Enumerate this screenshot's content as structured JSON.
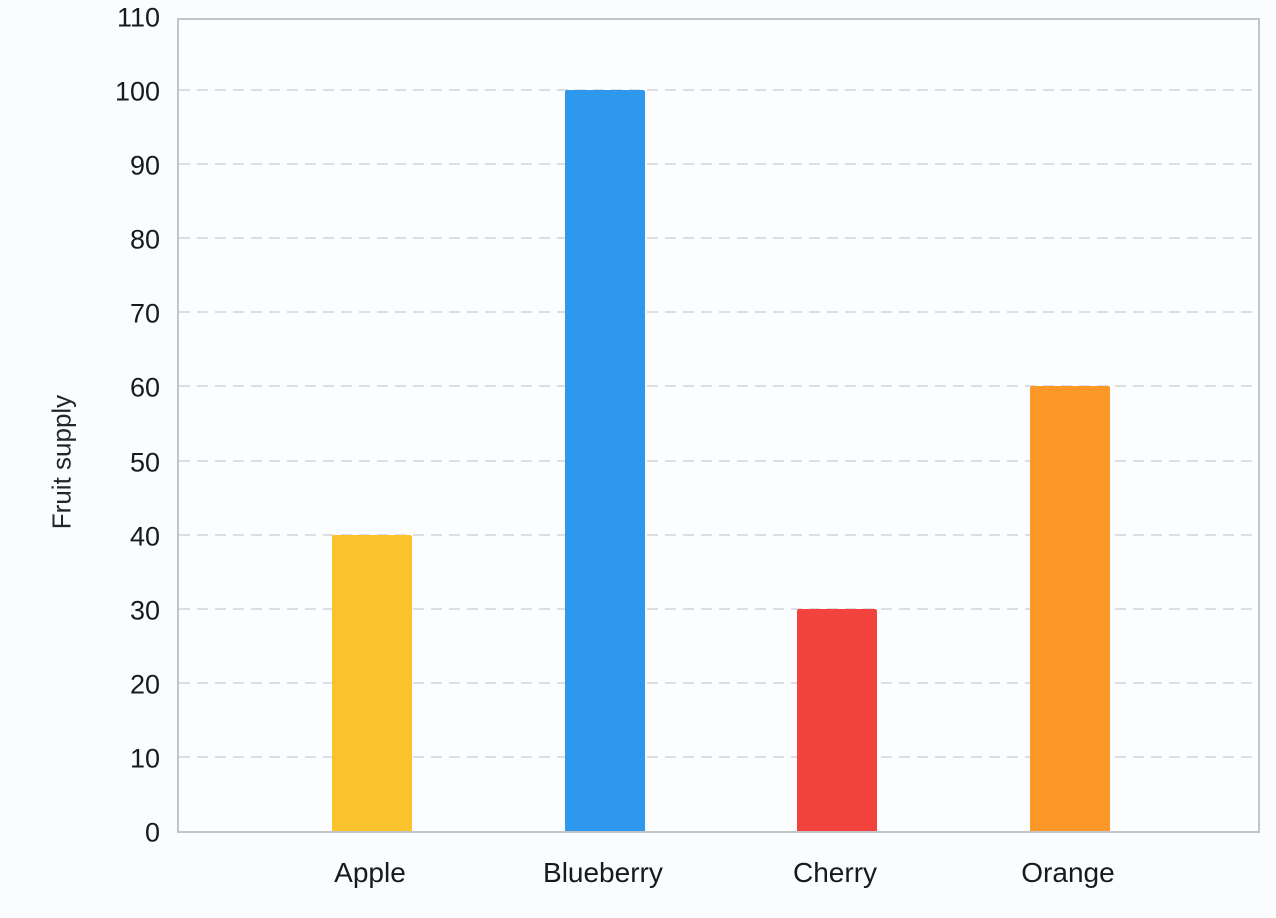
{
  "chart_data": {
    "type": "bar",
    "title": "",
    "categories": [
      "Apple",
      "Blueberry",
      "Cherry",
      "Orange"
    ],
    "values": [
      40,
      100,
      30,
      60
    ],
    "bar_colors": [
      "#fcc22d",
      "#2e97ee",
      "#f2443c",
      "#fb9827"
    ],
    "xlabel": "",
    "ylabel": "Fruit supply",
    "ylim": [
      0,
      110
    ],
    "yticks": [
      0,
      10,
      20,
      30,
      40,
      50,
      60,
      70,
      80,
      90,
      100,
      110
    ],
    "grid": "horizontal-dashed",
    "legend_position": "none",
    "colors": {
      "gridline": "#dddee2",
      "plot_border": "#c3c4c8",
      "plot_background": "#fcfdff",
      "page_background": "#fbfcfd",
      "tick_text": "#17191d"
    }
  }
}
